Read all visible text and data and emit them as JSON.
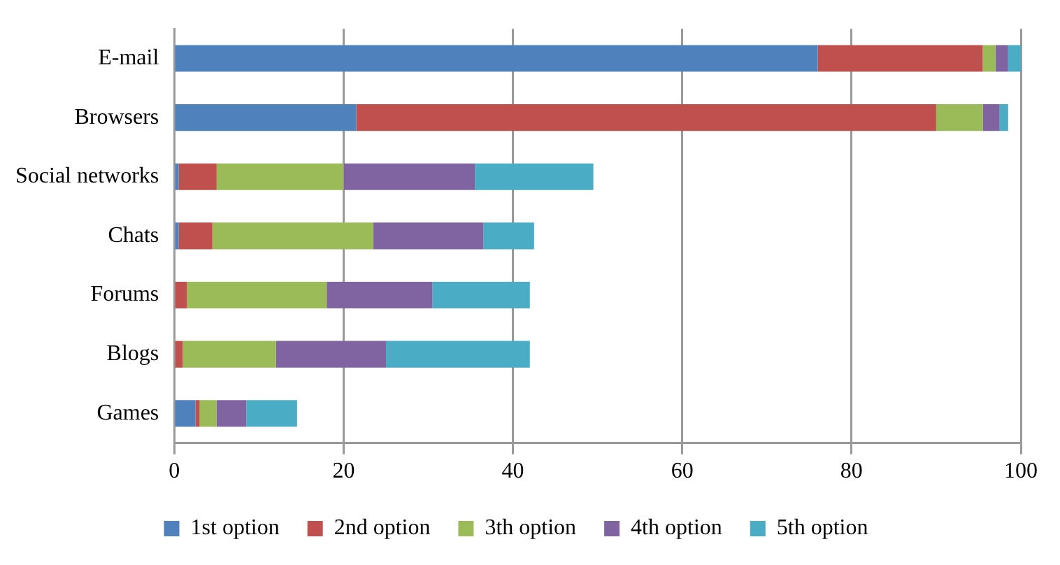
{
  "chart_data": {
    "type": "bar",
    "orientation": "horizontal",
    "stacked": true,
    "categories": [
      "E-mail",
      "Browsers",
      "Social networks",
      "Chats",
      "Forums",
      "Blogs",
      "Games"
    ],
    "series": [
      {
        "name": "1st option",
        "color": "#4f81bd",
        "values": [
          76,
          21.5,
          0.5,
          0.5,
          0,
          0,
          2.5
        ]
      },
      {
        "name": "2nd option",
        "color": "#c0504d",
        "values": [
          19.5,
          68.5,
          4.5,
          4,
          1.5,
          1,
          0.5
        ]
      },
      {
        "name": "3th option",
        "color": "#9bbb59",
        "values": [
          1.5,
          5.5,
          15,
          19,
          16.5,
          11,
          2
        ]
      },
      {
        "name": "4th option",
        "color": "#8064a2",
        "values": [
          1.5,
          2,
          15.5,
          13,
          12.5,
          13,
          3.5
        ]
      },
      {
        "name": "5th option",
        "color": "#4bacc6",
        "values": [
          1.5,
          1,
          14,
          6,
          11.5,
          17,
          6
        ]
      }
    ],
    "xlim": [
      0,
      100
    ],
    "xticks": [
      0,
      20,
      40,
      60,
      80,
      100
    ],
    "grid": "x",
    "legend": "bottom"
  }
}
